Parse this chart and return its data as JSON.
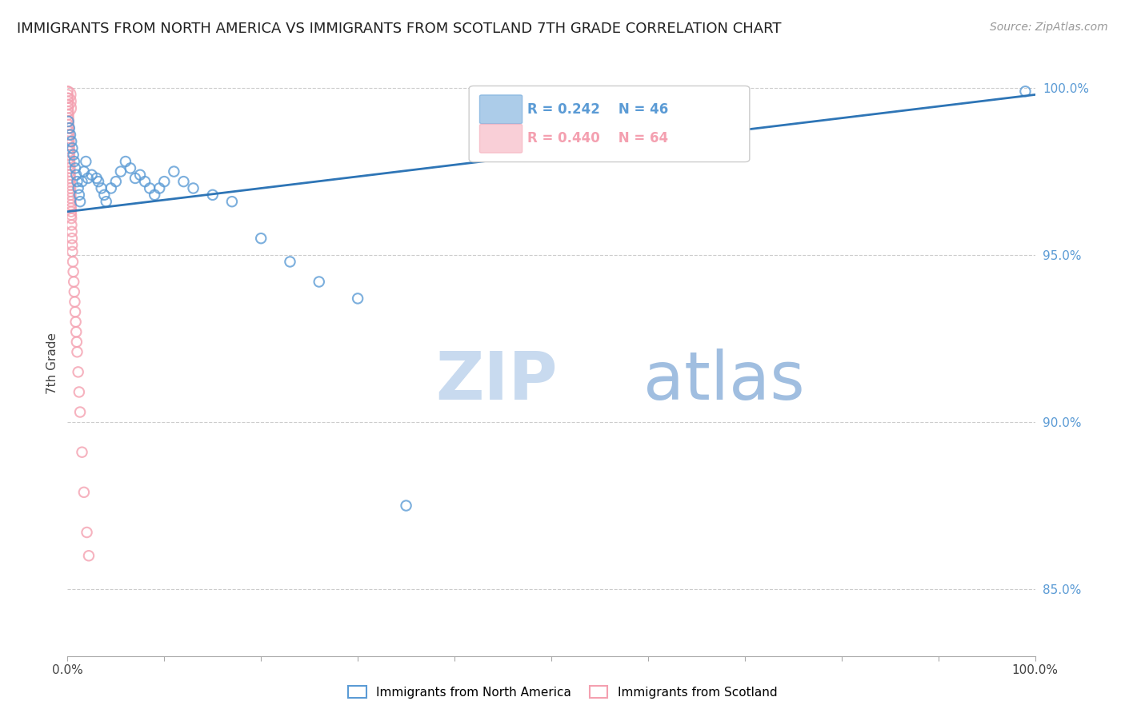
{
  "title": "IMMIGRANTS FROM NORTH AMERICA VS IMMIGRANTS FROM SCOTLAND 7TH GRADE CORRELATION CHART",
  "source": "Source: ZipAtlas.com",
  "ylabel": "7th Grade",
  "right_yticks": [
    "100.0%",
    "95.0%",
    "90.0%",
    "85.0%"
  ],
  "right_ytick_vals": [
    1.0,
    0.95,
    0.9,
    0.85
  ],
  "legend_label_blue": "Immigrants from North America",
  "legend_label_pink": "Immigrants from Scotland",
  "R_blue": "R = 0.242",
  "N_blue": "N = 46",
  "R_pink": "R = 0.440",
  "N_pink": "N = 64",
  "blue_color": "#5B9BD5",
  "pink_color": "#F4A0B0",
  "trendline_color": "#2E75B6",
  "watermark_color_zip": "#C8DAEF",
  "watermark_color_atlas": "#A8C4E8",
  "title_fontsize": 13,
  "source_fontsize": 10,
  "blue_scatter_x": [
    0.001,
    0.002,
    0.003,
    0.004,
    0.005,
    0.006,
    0.007,
    0.008,
    0.009,
    0.01,
    0.011,
    0.012,
    0.013,
    0.015,
    0.017,
    0.019,
    0.021,
    0.025,
    0.03,
    0.032,
    0.035,
    0.038,
    0.04,
    0.045,
    0.05,
    0.055,
    0.06,
    0.065,
    0.07,
    0.075,
    0.08,
    0.085,
    0.09,
    0.095,
    0.1,
    0.11,
    0.12,
    0.13,
    0.15,
    0.17,
    0.2,
    0.23,
    0.26,
    0.3,
    0.35,
    0.99
  ],
  "blue_scatter_y": [
    0.99,
    0.988,
    0.986,
    0.984,
    0.982,
    0.98,
    0.978,
    0.976,
    0.974,
    0.972,
    0.97,
    0.968,
    0.966,
    0.972,
    0.975,
    0.978,
    0.973,
    0.974,
    0.973,
    0.972,
    0.97,
    0.968,
    0.966,
    0.97,
    0.972,
    0.975,
    0.978,
    0.976,
    0.973,
    0.974,
    0.972,
    0.97,
    0.968,
    0.97,
    0.972,
    0.975,
    0.972,
    0.97,
    0.968,
    0.966,
    0.955,
    0.948,
    0.942,
    0.937,
    0.875,
    0.999
  ],
  "blue_scatter_size": [
    80,
    80,
    80,
    80,
    80,
    80,
    80,
    80,
    80,
    80,
    80,
    80,
    80,
    80,
    80,
    80,
    80,
    80,
    80,
    80,
    80,
    80,
    80,
    80,
    80,
    80,
    80,
    80,
    80,
    80,
    80,
    80,
    80,
    80,
    80,
    80,
    80,
    80,
    80,
    80,
    80,
    80,
    80,
    80,
    80,
    80
  ],
  "pink_scatter_x": [
    0.0002,
    0.0003,
    0.0004,
    0.0005,
    0.0006,
    0.0007,
    0.0008,
    0.0009,
    0.001,
    0.0011,
    0.0012,
    0.0013,
    0.0014,
    0.0015,
    0.0016,
    0.0017,
    0.0018,
    0.0019,
    0.002,
    0.0021,
    0.0022,
    0.0023,
    0.0024,
    0.0025,
    0.0026,
    0.0027,
    0.0028,
    0.0029,
    0.003,
    0.0031,
    0.0032,
    0.0033,
    0.0034,
    0.0035,
    0.0036,
    0.0037,
    0.0038,
    0.0039,
    0.004,
    0.0042,
    0.0044,
    0.0046,
    0.0048,
    0.005,
    0.0055,
    0.006,
    0.0065,
    0.007,
    0.0075,
    0.008,
    0.0085,
    0.009,
    0.0095,
    0.01,
    0.011,
    0.012,
    0.013,
    0.015,
    0.017,
    0.02,
    0.0003,
    0.0005,
    0.0007,
    0.022
  ],
  "pink_scatter_y": [
    0.999,
    0.998,
    0.997,
    0.996,
    0.995,
    0.994,
    0.993,
    0.992,
    0.991,
    0.99,
    0.989,
    0.988,
    0.987,
    0.986,
    0.985,
    0.984,
    0.983,
    0.982,
    0.981,
    0.98,
    0.979,
    0.978,
    0.977,
    0.976,
    0.975,
    0.974,
    0.973,
    0.972,
    0.971,
    0.97,
    0.969,
    0.968,
    0.967,
    0.966,
    0.965,
    0.964,
    0.963,
    0.962,
    0.961,
    0.959,
    0.957,
    0.955,
    0.953,
    0.951,
    0.948,
    0.945,
    0.942,
    0.939,
    0.936,
    0.933,
    0.93,
    0.927,
    0.924,
    0.921,
    0.915,
    0.909,
    0.903,
    0.891,
    0.879,
    0.867,
    0.998,
    0.996,
    0.994,
    0.86
  ],
  "pink_scatter_size": [
    80,
    80,
    80,
    80,
    80,
    80,
    80,
    80,
    80,
    80,
    80,
    80,
    80,
    80,
    80,
    80,
    80,
    80,
    80,
    80,
    80,
    80,
    80,
    80,
    80,
    80,
    80,
    80,
    80,
    80,
    80,
    80,
    80,
    80,
    80,
    80,
    80,
    80,
    80,
    80,
    80,
    80,
    80,
    80,
    80,
    80,
    80,
    80,
    80,
    80,
    80,
    80,
    80,
    80,
    80,
    80,
    80,
    80,
    80,
    80,
    200,
    200,
    200,
    80
  ],
  "trendline_x": [
    0.0,
    1.0
  ],
  "trendline_y": [
    0.963,
    0.998
  ],
  "xlim": [
    0.0,
    1.0
  ],
  "ylim": [
    0.83,
    1.005
  ]
}
